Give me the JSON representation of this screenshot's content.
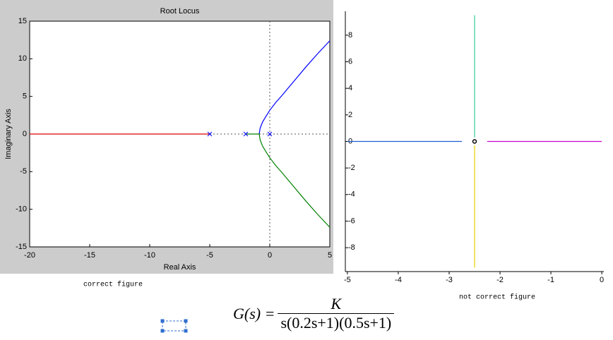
{
  "chart_data": [
    {
      "type": "line",
      "title": "Root Locus",
      "xlabel": "Real Axis",
      "ylabel": "Imaginary Axis",
      "caption": "correct figure",
      "xlim": [
        -20,
        5
      ],
      "ylim": [
        -15,
        15
      ],
      "xticks": [
        -20,
        -15,
        -10,
        -5,
        0,
        5
      ],
      "yticks": [
        -15,
        -10,
        -5,
        0,
        5,
        10,
        15
      ],
      "series": [
        {
          "color": "#e00000",
          "x": [
            -20,
            -5
          ],
          "values": [
            0,
            0
          ]
        },
        {
          "color": "#0000ff",
          "x": [
            -0.88,
            -0.8,
            -0.6,
            -0.3,
            0,
            0.5,
            1,
            2,
            3,
            4,
            5
          ],
          "values": [
            0,
            0.8,
            1.6,
            2.4,
            3.16,
            4.2,
            5.1,
            7,
            8.9,
            10.7,
            12.4
          ]
        },
        {
          "color": "#008000",
          "x": [
            -2,
            -0.88,
            -0.8,
            -0.6,
            -0.3,
            0,
            0.5,
            1,
            2,
            3,
            4,
            5
          ],
          "values": [
            0,
            0,
            -0.8,
            -1.6,
            -2.4,
            -3.16,
            -4.2,
            -5.1,
            -7,
            -8.9,
            -10.7,
            -12.4
          ]
        },
        {
          "color": "#0000ff",
          "marker": "x",
          "x": [
            -5,
            -2,
            0
          ],
          "values": [
            0,
            0,
            0
          ]
        }
      ]
    },
    {
      "type": "line",
      "caption": "not correct figure",
      "xlim": [
        -5.04,
        0.04
      ],
      "ylim": [
        -9.8,
        9.8
      ],
      "xticks": [
        -5,
        -4,
        -3,
        -2,
        -1,
        0
      ],
      "yticks": [
        -8,
        -6,
        -4,
        -2,
        0,
        2,
        4,
        6,
        8
      ],
      "series": [
        {
          "color": "#1f5fd0",
          "x": [
            -5,
            -2.75
          ],
          "values": [
            0,
            0
          ]
        },
        {
          "color": "#cc00cc",
          "x": [
            -2.25,
            0
          ],
          "values": [
            0,
            0
          ]
        },
        {
          "color": "#33cc99",
          "x": [
            -2.5,
            -2.5
          ],
          "values": [
            0.3,
            9.5
          ]
        },
        {
          "color": "#e6d000",
          "x": [
            -2.5,
            -2.5
          ],
          "values": [
            -0.3,
            -9.5
          ]
        },
        {
          "color": "#000000",
          "marker": "o",
          "x": [
            -2.5
          ],
          "values": [
            0
          ]
        }
      ]
    }
  ],
  "formula": {
    "lhs": "G(s) =",
    "numerator": "K",
    "denominator": "s(0.2s+1)(0.5s+1)"
  }
}
